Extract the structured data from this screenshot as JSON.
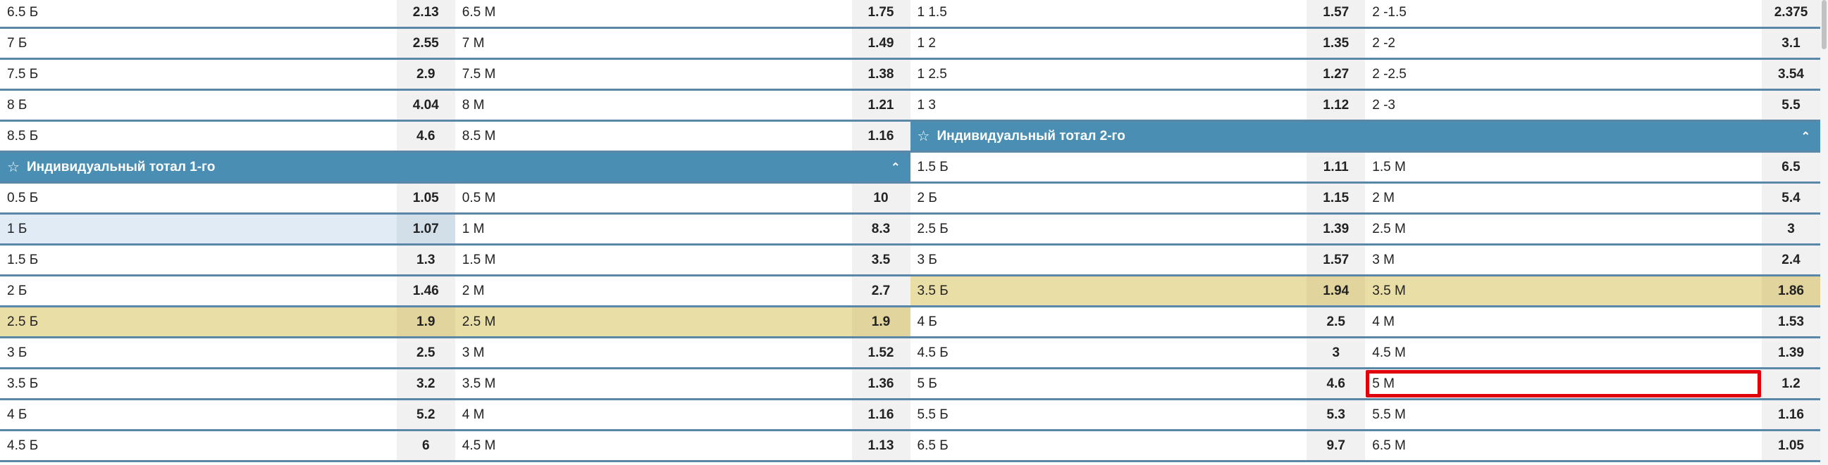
{
  "colors": {
    "header_bg": "#4a8fb3",
    "separator": "#5a87a8",
    "highlight_yellow": "#e9dea6",
    "selected_blue": "#e0ebf5",
    "focus_outline": "#e0000b"
  },
  "left": [
    {
      "type": "pair",
      "cells": [
        {
          "label": "6.5 Б",
          "odds": "2.13"
        },
        {
          "label": "6.5 М",
          "odds": "1.75"
        }
      ]
    },
    {
      "type": "pair",
      "cells": [
        {
          "label": "7 Б",
          "odds": "2.55"
        },
        {
          "label": "7 М",
          "odds": "1.49"
        }
      ]
    },
    {
      "type": "pair",
      "cells": [
        {
          "label": "7.5 Б",
          "odds": "2.9"
        },
        {
          "label": "7.5 М",
          "odds": "1.38"
        }
      ]
    },
    {
      "type": "pair",
      "cells": [
        {
          "label": "8 Б",
          "odds": "4.04"
        },
        {
          "label": "8 М",
          "odds": "1.21"
        }
      ]
    },
    {
      "type": "pair",
      "cells": [
        {
          "label": "8.5 Б",
          "odds": "4.6"
        },
        {
          "label": "8.5 М",
          "odds": "1.16"
        }
      ]
    },
    {
      "type": "header",
      "title": "Индивидуальный тотал 1-го",
      "star_icon": "star-outline-icon",
      "chevron_icon": "chevron-up-icon"
    },
    {
      "type": "pair",
      "cells": [
        {
          "label": "0.5 Б",
          "odds": "1.05"
        },
        {
          "label": "0.5 М",
          "odds": "10"
        }
      ]
    },
    {
      "type": "pair",
      "cells": [
        {
          "label": "1 Б",
          "odds": "1.07",
          "selected": true
        },
        {
          "label": "1 М",
          "odds": "8.3"
        }
      ]
    },
    {
      "type": "pair",
      "cells": [
        {
          "label": "1.5 Б",
          "odds": "1.3"
        },
        {
          "label": "1.5 М",
          "odds": "3.5"
        }
      ]
    },
    {
      "type": "pair",
      "cells": [
        {
          "label": "2 Б",
          "odds": "1.46"
        },
        {
          "label": "2 М",
          "odds": "2.7"
        }
      ]
    },
    {
      "type": "pair",
      "highlight": true,
      "cells": [
        {
          "label": "2.5 Б",
          "odds": "1.9"
        },
        {
          "label": "2.5 М",
          "odds": "1.9"
        }
      ]
    },
    {
      "type": "pair",
      "cells": [
        {
          "label": "3 Б",
          "odds": "2.5"
        },
        {
          "label": "3 М",
          "odds": "1.52"
        }
      ]
    },
    {
      "type": "pair",
      "cells": [
        {
          "label": "3.5 Б",
          "odds": "3.2"
        },
        {
          "label": "3.5 М",
          "odds": "1.36"
        }
      ]
    },
    {
      "type": "pair",
      "cells": [
        {
          "label": "4 Б",
          "odds": "5.2"
        },
        {
          "label": "4 М",
          "odds": "1.16"
        }
      ]
    },
    {
      "type": "pair",
      "cells": [
        {
          "label": "4.5 Б",
          "odds": "6"
        },
        {
          "label": "4.5 М",
          "odds": "1.13"
        }
      ]
    }
  ],
  "right": [
    {
      "type": "pair",
      "cells": [
        {
          "label": "1 1.5",
          "odds": "1.57"
        },
        {
          "label": "2 -1.5",
          "odds": "2.375"
        }
      ]
    },
    {
      "type": "pair",
      "cells": [
        {
          "label": "1 2",
          "odds": "1.35"
        },
        {
          "label": "2 -2",
          "odds": "3.1"
        }
      ]
    },
    {
      "type": "pair",
      "cells": [
        {
          "label": "1 2.5",
          "odds": "1.27"
        },
        {
          "label": "2 -2.5",
          "odds": "3.54"
        }
      ]
    },
    {
      "type": "pair",
      "cells": [
        {
          "label": "1 3",
          "odds": "1.12"
        },
        {
          "label": "2 -3",
          "odds": "5.5"
        }
      ]
    },
    {
      "type": "header",
      "title": "Индивидуальный тотал 2-го",
      "star_icon": "star-outline-icon",
      "chevron_icon": "chevron-up-icon"
    },
    {
      "type": "pair",
      "cells": [
        {
          "label": "1.5 Б",
          "odds": "1.11"
        },
        {
          "label": "1.5 М",
          "odds": "6.5"
        }
      ]
    },
    {
      "type": "pair",
      "cells": [
        {
          "label": "2 Б",
          "odds": "1.15"
        },
        {
          "label": "2 М",
          "odds": "5.4"
        }
      ]
    },
    {
      "type": "pair",
      "cells": [
        {
          "label": "2.5 Б",
          "odds": "1.39"
        },
        {
          "label": "2.5 М",
          "odds": "3"
        }
      ]
    },
    {
      "type": "pair",
      "cells": [
        {
          "label": "3 Б",
          "odds": "1.57"
        },
        {
          "label": "3 М",
          "odds": "2.4"
        }
      ]
    },
    {
      "type": "pair",
      "highlight": true,
      "cells": [
        {
          "label": "3.5 Б",
          "odds": "1.94"
        },
        {
          "label": "3.5 М",
          "odds": "1.86"
        }
      ]
    },
    {
      "type": "pair",
      "cells": [
        {
          "label": "4 Б",
          "odds": "2.5"
        },
        {
          "label": "4 М",
          "odds": "1.53"
        }
      ]
    },
    {
      "type": "pair",
      "cells": [
        {
          "label": "4.5 Б",
          "odds": "3"
        },
        {
          "label": "4.5 М",
          "odds": "1.39"
        }
      ]
    },
    {
      "type": "pair",
      "cells": [
        {
          "label": "5 Б",
          "odds": "4.6"
        },
        {
          "label": "5 М",
          "odds": "1.2",
          "outlined": true
        }
      ]
    },
    {
      "type": "pair",
      "cells": [
        {
          "label": "5.5 Б",
          "odds": "5.3"
        },
        {
          "label": "5.5 М",
          "odds": "1.16"
        }
      ]
    },
    {
      "type": "pair",
      "cells": [
        {
          "label": "6.5 Б",
          "odds": "9.7"
        },
        {
          "label": "6.5 М",
          "odds": "1.05"
        }
      ]
    }
  ]
}
